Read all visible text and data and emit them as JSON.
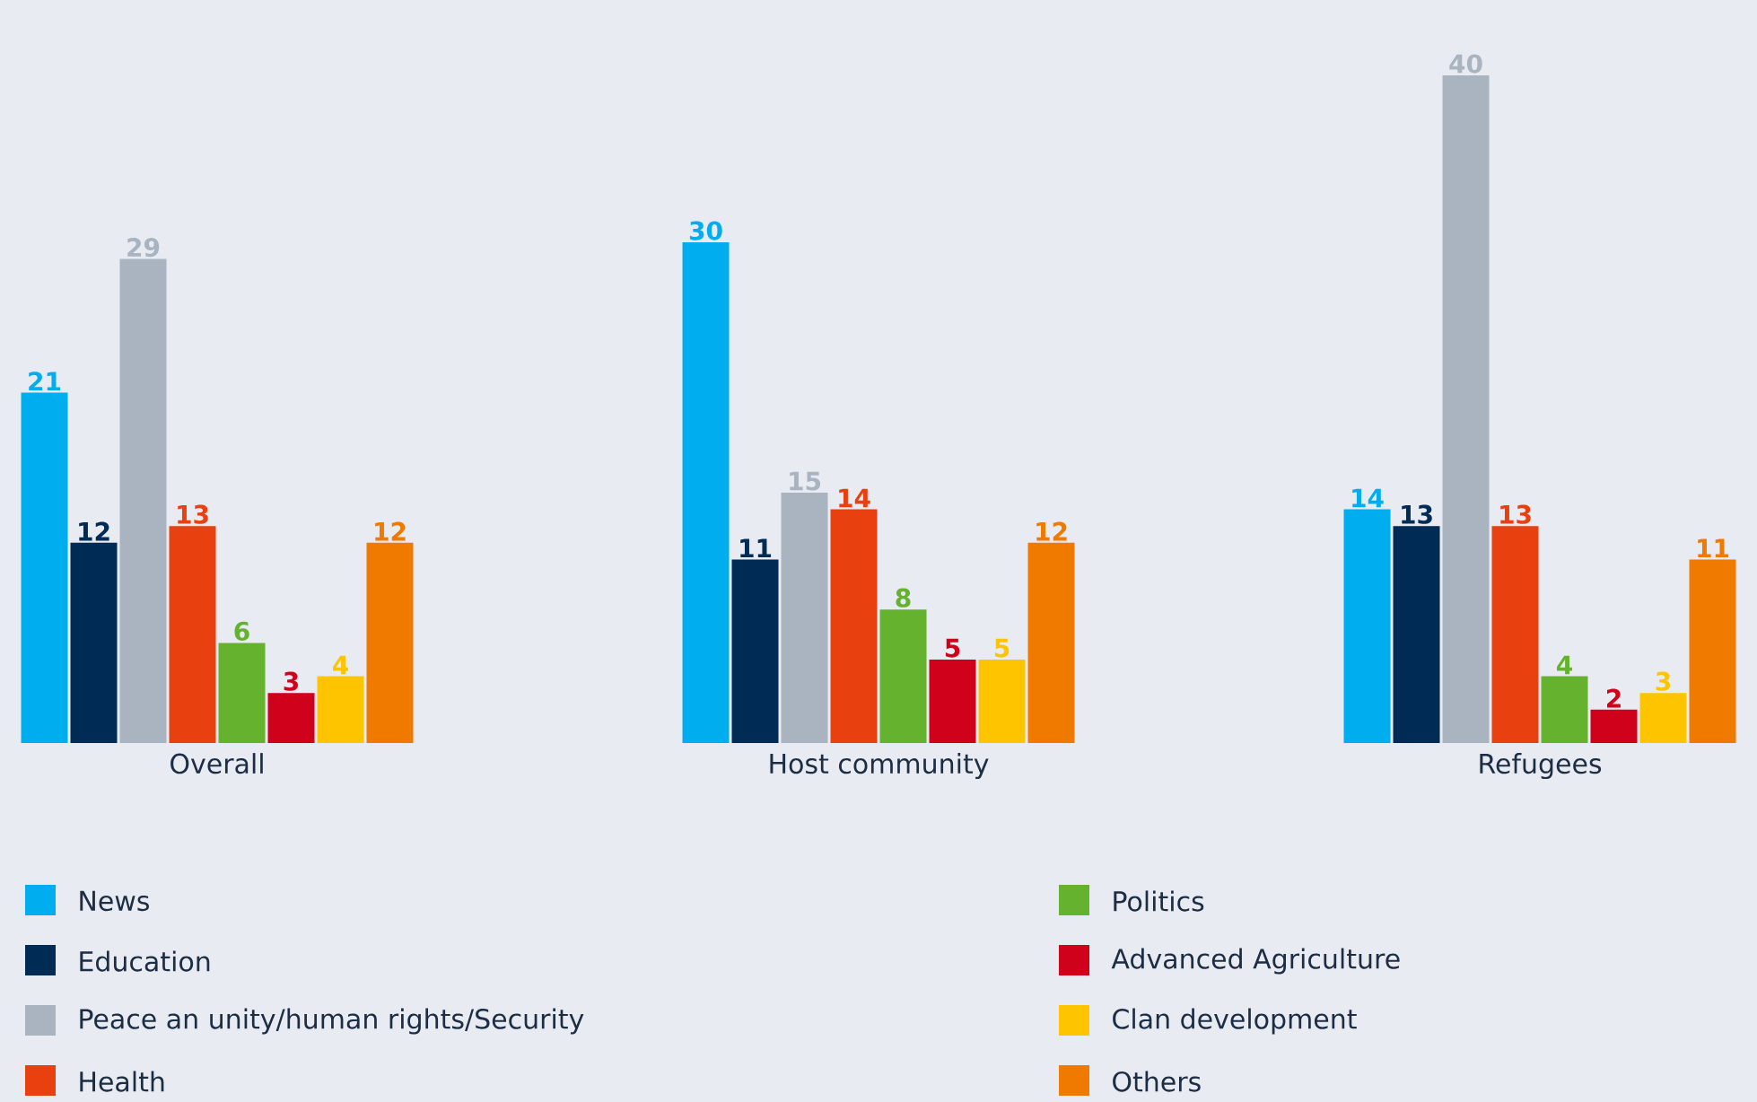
{
  "chart_data": {
    "type": "bar",
    "categories": [
      "Overall",
      "Host community",
      "Refugees"
    ],
    "series": [
      {
        "name": "News",
        "color": "#00aeef",
        "values": [
          21,
          30,
          14
        ]
      },
      {
        "name": "Education",
        "color": "#002b55",
        "values": [
          12,
          11,
          13
        ]
      },
      {
        "name": "Peace an unity/human rights/Security",
        "color": "#a9b4c0",
        "values": [
          29,
          15,
          40
        ]
      },
      {
        "name": "Health",
        "color": "#e8410f",
        "values": [
          13,
          14,
          13
        ]
      },
      {
        "name": "Politics",
        "color": "#64b22e",
        "values": [
          6,
          8,
          4
        ]
      },
      {
        "name": "Advanced Agriculture",
        "color": "#d0021b",
        "values": [
          3,
          5,
          2
        ]
      },
      {
        "name": "Clan development",
        "color": "#ffc400",
        "values": [
          4,
          5,
          3
        ]
      },
      {
        "name": "Others",
        "color": "#f07a00",
        "values": [
          12,
          12,
          11
        ]
      }
    ],
    "data_labels": true,
    "legend": "bottom"
  }
}
